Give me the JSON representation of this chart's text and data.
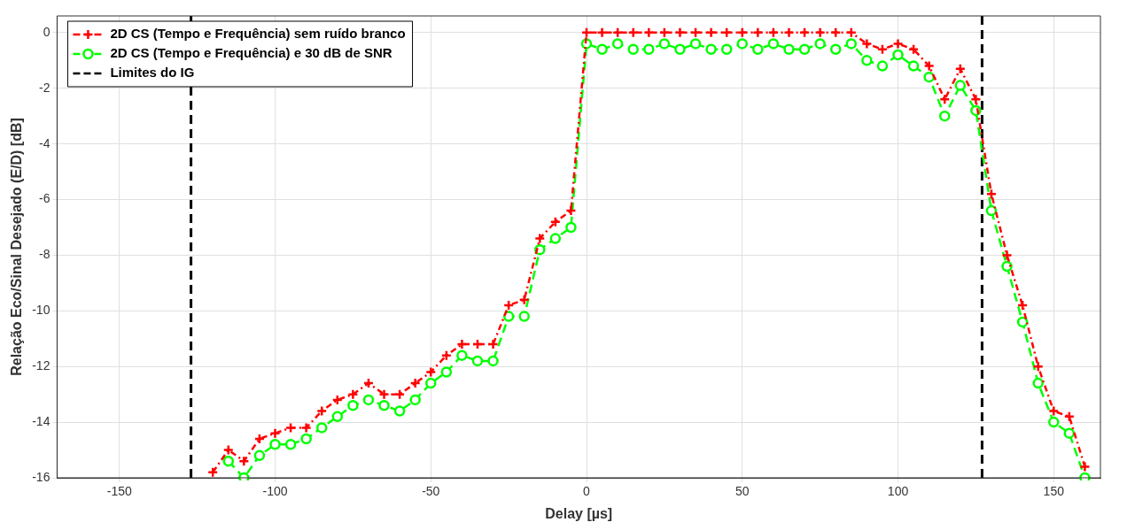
{
  "chart_data": {
    "type": "line",
    "xlabel": "Delay [µs]",
    "ylabel": "Relação Eco/Sinal Desejado (E/D) [dB]",
    "x": [
      -120,
      -115,
      -110,
      -105,
      -100,
      -95,
      -90,
      -85,
      -80,
      -75,
      -70,
      -65,
      -60,
      -55,
      -50,
      -45,
      -40,
      -35,
      -30,
      -25,
      -20,
      -15,
      -10,
      -5,
      0,
      5,
      10,
      15,
      20,
      25,
      30,
      35,
      40,
      45,
      50,
      55,
      60,
      65,
      70,
      75,
      80,
      85,
      90,
      95,
      100,
      105,
      110,
      115,
      120,
      125,
      130,
      135,
      140,
      145,
      150,
      155,
      160
    ],
    "series": [
      {
        "name": "2D CS (Tempo e Frequência) sem ruído branco",
        "color": "#ff0000",
        "marker": "cross",
        "line_style": "dotted",
        "values": [
          -15.8,
          -15.0,
          -15.4,
          -14.6,
          -14.4,
          -14.2,
          -14.2,
          -13.6,
          -13.2,
          -13.0,
          -12.6,
          -13.0,
          -13.0,
          -12.6,
          -12.2,
          -11.6,
          -11.2,
          -11.2,
          -11.2,
          -9.8,
          -9.6,
          -7.4,
          -6.8,
          -6.4,
          0,
          0,
          0,
          0,
          0,
          0,
          0,
          0,
          0,
          0,
          0,
          0,
          0,
          0,
          0,
          0,
          0,
          0,
          -0.4,
          -0.6,
          -0.4,
          -0.6,
          -1.2,
          -2.4,
          -1.3,
          -2.4,
          -5.8,
          -8.0,
          -9.8,
          -12.0,
          -13.6,
          -13.8,
          -15.6
        ]
      },
      {
        "name": "2D CS (Tempo e Frequência) e 30 dB de SNR",
        "color": "#00ff00",
        "marker": "circle",
        "line_style": "dashed",
        "values": [
          null,
          -15.4,
          -16.0,
          -15.2,
          -14.8,
          -14.8,
          -14.6,
          -14.2,
          -13.8,
          -13.4,
          -13.2,
          -13.4,
          -13.6,
          -13.2,
          -12.6,
          -12.2,
          -11.6,
          -11.8,
          -11.8,
          -10.2,
          -10.2,
          -7.8,
          -7.4,
          -7.0,
          -0.4,
          -0.6,
          -0.4,
          -0.6,
          -0.6,
          -0.4,
          -0.6,
          -0.4,
          -0.6,
          -0.6,
          -0.4,
          -0.6,
          -0.4,
          -0.6,
          -0.6,
          -0.4,
          -0.6,
          -0.4,
          -1.0,
          -1.2,
          -0.8,
          -1.2,
          -1.6,
          -3.0,
          -1.9,
          -2.8,
          -6.4,
          -8.4,
          -10.4,
          -12.6,
          -14.0,
          -14.4,
          -16.0
        ]
      }
    ],
    "ref_lines": [
      {
        "axis": "x",
        "value": -127,
        "label": "Limites do IG",
        "color": "#000000",
        "line_style": "dashed"
      },
      {
        "axis": "x",
        "value": 127,
        "color": "#000000",
        "line_style": "dashed"
      }
    ],
    "xlim": [
      -170,
      165
    ],
    "xticks": [
      -150,
      -100,
      -50,
      0,
      50,
      100,
      150
    ],
    "ylim": [
      -16,
      0.6
    ],
    "yticks": [
      -16,
      -14,
      -12,
      -10,
      -8,
      -6,
      -4,
      -2,
      0
    ],
    "grid": true,
    "legend": "top left"
  }
}
